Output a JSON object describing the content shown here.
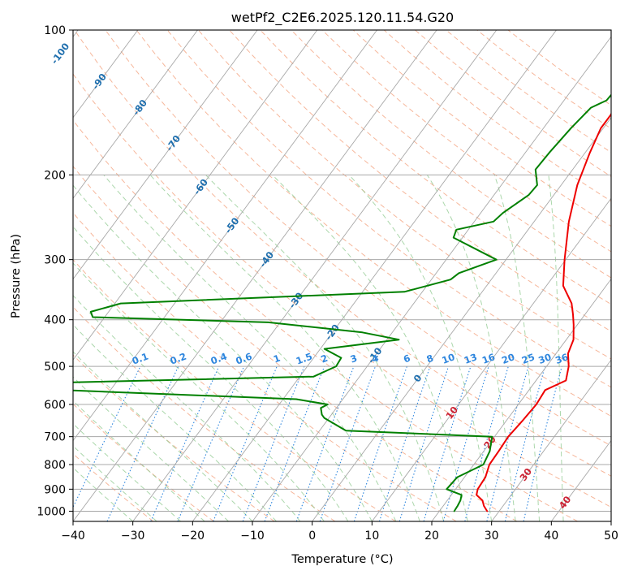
{
  "chart_data": {
    "type": "line",
    "title": "wetPf2_C2E6.2025.120.11.54.G20",
    "xlabel": "Temperature (°C)",
    "ylabel": "Pressure (hPa)",
    "xlim": [
      -40,
      50
    ],
    "ylim": [
      1050,
      100
    ],
    "y_scale": "log",
    "x_ticks": [
      -40,
      -30,
      -20,
      -10,
      0,
      10,
      20,
      30,
      40,
      50
    ],
    "y_ticks": [
      100,
      200,
      300,
      400,
      500,
      600,
      700,
      800,
      900,
      1000
    ],
    "series": [
      {
        "color": "#ee0000",
        "points": [
          [
            28.0,
            1000
          ],
          [
            26.8,
            975
          ],
          [
            25.9,
            950
          ],
          [
            24.2,
            925
          ],
          [
            23.7,
            900
          ],
          [
            23.5,
            850
          ],
          [
            22.6,
            800
          ],
          [
            22.5,
            750
          ],
          [
            22.3,
            700
          ],
          [
            22.7,
            650
          ],
          [
            23.0,
            600
          ],
          [
            22.7,
            560
          ],
          [
            25.0,
            535
          ],
          [
            23.7,
            500
          ],
          [
            22.0,
            470
          ],
          [
            21.2,
            440
          ],
          [
            19.4,
            410
          ],
          [
            18.0,
            390
          ],
          [
            16.4,
            370
          ],
          [
            12.8,
            340
          ],
          [
            9.8,
            300
          ],
          [
            5.8,
            250
          ],
          [
            2.7,
            210
          ],
          [
            0.8,
            180
          ],
          [
            -0.4,
            160
          ],
          [
            -0.4,
            150
          ],
          [
            -1.0,
            140
          ],
          [
            -1.8,
            130
          ],
          [
            -2.4,
            120
          ],
          [
            -1.6,
            110
          ],
          [
            -0.3,
            100
          ]
        ]
      },
      {
        "color": "#008000",
        "points": [
          [
            22.5,
            1000
          ],
          [
            22.4,
            975
          ],
          [
            22.2,
            950
          ],
          [
            21.7,
            925
          ],
          [
            18.5,
            900
          ],
          [
            18.8,
            850
          ],
          [
            21.6,
            800
          ],
          [
            21.0,
            750
          ],
          [
            19.6,
            700
          ],
          [
            -5.6,
            680
          ],
          [
            -10.8,
            640
          ],
          [
            -11.6,
            630
          ],
          [
            -12.6,
            610
          ],
          [
            -11.9,
            600
          ],
          [
            -17.8,
            585
          ],
          [
            -58.0,
            560
          ],
          [
            -58.0,
            540
          ],
          [
            -17.7,
            525
          ],
          [
            -15.2,
            500
          ],
          [
            -15.4,
            480
          ],
          [
            -19.3,
            460
          ],
          [
            -8.0,
            440
          ],
          [
            -15.0,
            425
          ],
          [
            -32.0,
            405
          ],
          [
            -62.0,
            395
          ],
          [
            -63.0,
            385
          ],
          [
            -59.0,
            370
          ],
          [
            -13.0,
            350
          ],
          [
            -6.8,
            330
          ],
          [
            -6.2,
            320
          ],
          [
            -1.6,
            300
          ],
          [
            -11.5,
            270
          ],
          [
            -12.0,
            260
          ],
          [
            -6.8,
            250
          ],
          [
            -6.3,
            240
          ],
          [
            -4.2,
            220
          ],
          [
            -4.0,
            210
          ],
          [
            -6.2,
            195
          ],
          [
            -6.0,
            180
          ],
          [
            -5.4,
            160
          ],
          [
            -4.6,
            145
          ],
          [
            -2.9,
            140
          ],
          [
            -2.6,
            130
          ],
          [
            -1.7,
            120
          ],
          [
            -0.3,
            110
          ],
          [
            1.5,
            100
          ]
        ]
      }
    ],
    "isotherm_labels": [
      "-100",
      "-90",
      "-80",
      "-70",
      "-60",
      "-50",
      "-40",
      "-30",
      "-20",
      "-10",
      "0",
      "10",
      "20",
      "30",
      "40"
    ],
    "mixing_ratio_labels": [
      "0.1",
      "0.2",
      "0.4",
      "0.6",
      "1",
      "1.5",
      "2",
      "3",
      "4",
      "6",
      "8",
      "10",
      "13",
      "16",
      "20",
      "25",
      "30",
      "36"
    ],
    "colors": {
      "temperature": "#ee0000",
      "dewpoint": "#008000",
      "isotherm_label": "#1f6fae",
      "warm_label": "#cc2233",
      "mixing_ratio": "#2e86de",
      "dry_adiabat": "#f4a582",
      "moist_adiabat": "#8fc98f",
      "skew_grid": "#a8a8a8"
    },
    "grid": true
  }
}
